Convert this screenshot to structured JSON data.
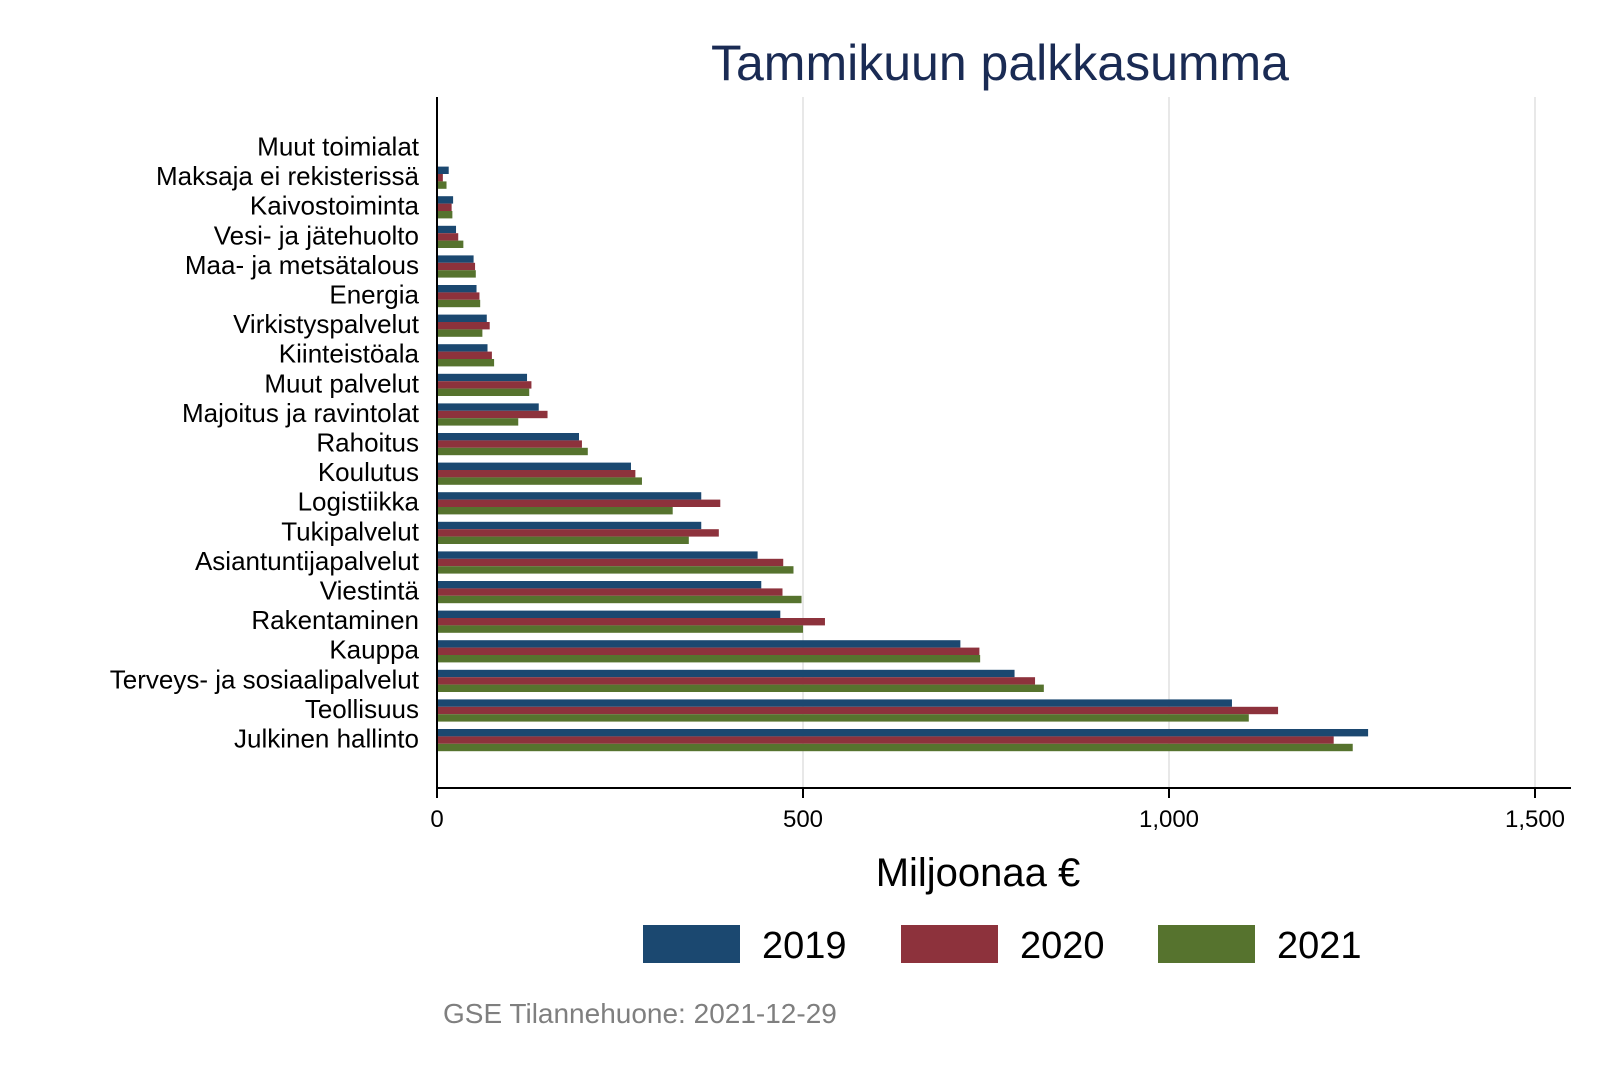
{
  "chart_data": {
    "type": "bar",
    "orientation": "horizontal",
    "title": "Tammikuun palkkasumma",
    "xlabel": "Miljoonaa €",
    "ylabel": "",
    "xlim": [
      0,
      1550
    ],
    "xticks": [
      0,
      500,
      1000,
      1500
    ],
    "xtick_labels": [
      "0",
      "500",
      "1,000",
      "1,500"
    ],
    "grid": true,
    "legend_position": "bottom",
    "note": "GSE Tilannehuone: 2021-12-29",
    "categories": [
      "Muut toimialat",
      "Maksaja ei rekisterissä",
      "Kaivostoiminta",
      "Vesi- ja jätehuolto",
      "Maa- ja metsätalous",
      "Energia",
      "Virkistyspalvelut",
      "Kiinteistöala",
      "Muut palvelut",
      "Majoitus ja ravintolat",
      "Rahoitus",
      "Koulutus",
      "Logistiikka",
      "Tukipalvelut",
      "Asiantuntijapalvelut",
      "Viestintä",
      "Rakentaminen",
      "Kauppa",
      "Terveys- ja sosiaalipalvelut",
      "Teollisuus",
      "Julkinen hallinto"
    ],
    "series": [
      {
        "name": "2019",
        "color": "#1b4870",
        "values": [
          1,
          16,
          22,
          26,
          50,
          54,
          68,
          69,
          123,
          139,
          194,
          265,
          361,
          361,
          438,
          443,
          469,
          715,
          789,
          1086,
          1272
        ]
      },
      {
        "name": "2020",
        "color": "#8d323c",
        "values": [
          1,
          8,
          20,
          29,
          52,
          58,
          72,
          75,
          129,
          151,
          198,
          271,
          387,
          385,
          473,
          472,
          530,
          741,
          817,
          1149,
          1225
        ]
      },
      {
        "name": "2021",
        "color": "#56732e",
        "values": [
          1,
          13,
          21,
          36,
          53,
          59,
          62,
          78,
          126,
          111,
          206,
          280,
          322,
          344,
          487,
          498,
          500,
          742,
          829,
          1109,
          1251
        ]
      }
    ]
  }
}
